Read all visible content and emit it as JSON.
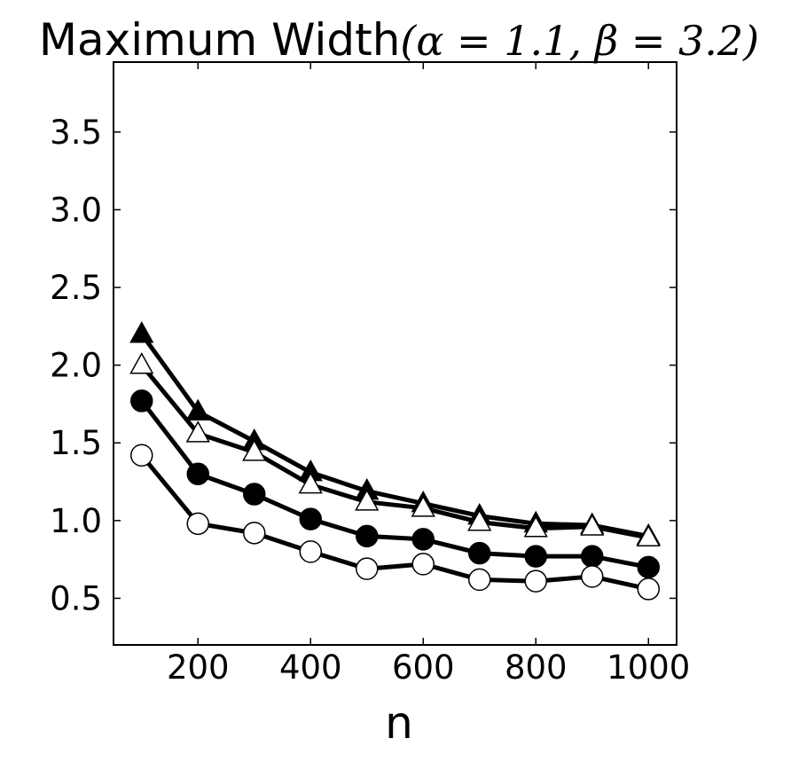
{
  "chart_data": {
    "type": "line",
    "title": "Maximum Width",
    "title_math": "(α = 1.1, β = 3.2)",
    "xlabel": "n",
    "ylabel": "",
    "xlim": [
      50,
      1050
    ],
    "ylim": [
      0.2,
      3.95
    ],
    "xticks": [
      200,
      400,
      600,
      800,
      1000
    ],
    "yticks": [
      0.5,
      1.0,
      1.5,
      2.0,
      2.5,
      3.0,
      3.5
    ],
    "ytick_labels": [
      "0.5",
      "1.0",
      "1.5",
      "2.0",
      "2.5",
      "3.0",
      "3.5"
    ],
    "grid": false,
    "x": [
      100,
      200,
      300,
      400,
      500,
      600,
      700,
      800,
      900,
      1000
    ],
    "series": [
      {
        "marker": "triangle-filled",
        "color": "#000000",
        "values": [
          2.2,
          1.7,
          1.51,
          1.31,
          1.19,
          1.11,
          1.03,
          0.98,
          0.97,
          0.9
        ]
      },
      {
        "marker": "triangle-open",
        "color": "#000000",
        "values": [
          2.0,
          1.56,
          1.44,
          1.23,
          1.12,
          1.08,
          0.99,
          0.95,
          0.96,
          0.89
        ]
      },
      {
        "marker": "circle-filled",
        "color": "#000000",
        "values": [
          1.77,
          1.3,
          1.17,
          1.01,
          0.9,
          0.88,
          0.79,
          0.77,
          0.77,
          0.7
        ]
      },
      {
        "marker": "circle-open",
        "color": "#000000",
        "values": [
          1.42,
          0.98,
          0.92,
          0.8,
          0.69,
          0.72,
          0.62,
          0.61,
          0.64,
          0.56
        ]
      }
    ]
  }
}
